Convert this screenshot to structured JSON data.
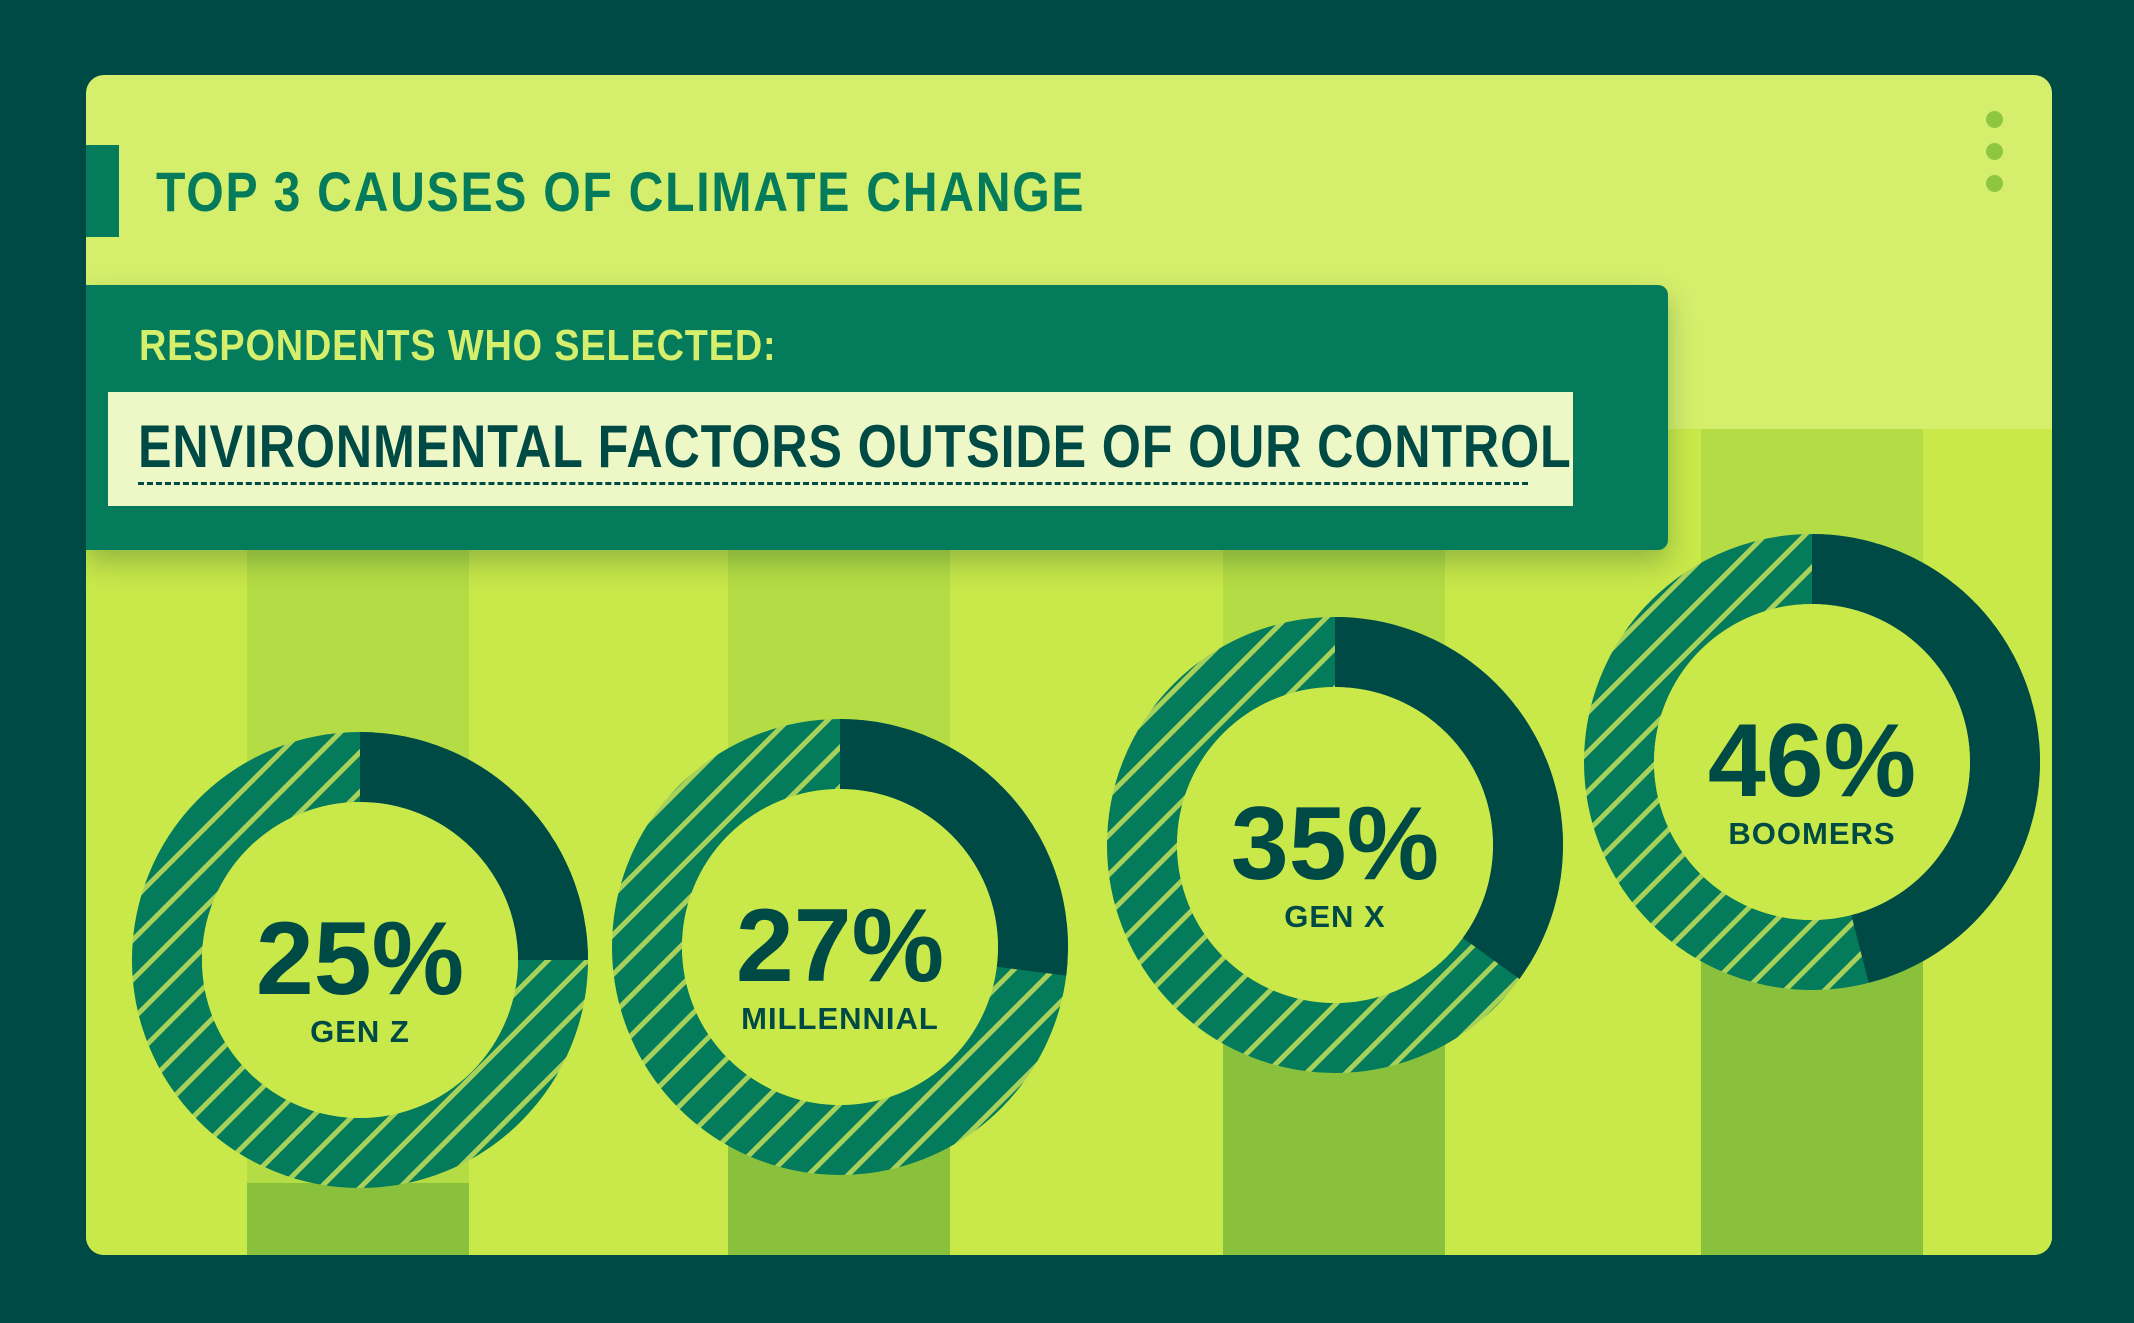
{
  "colors": {
    "frame": "#004a45",
    "card": "#d5ef6c",
    "chart_bg": "#c9e84a",
    "accent": "#047b5b",
    "dark": "#004a45",
    "hatch_stripe": "#a8d15a",
    "panel_box": "#eef7c6",
    "dot": "#8dc63f",
    "band_light": "#b4dc44",
    "band_dark": "#89c13d"
  },
  "header": {
    "title": "TOP 3 CAUSES OF CLIMATE CHANGE"
  },
  "menu_icon": "vertical-ellipsis-icon",
  "panel": {
    "label": "RESPONDENTS WHO SELECTED:",
    "selected_option": "ENVIRONMENTAL FACTORS OUTSIDE OF OUR CONTROL"
  },
  "chart_data": {
    "type": "pie",
    "title": "TOP 3 CAUSES OF CLIMATE CHANGE",
    "subtitle": "ENVIRONMENTAL FACTORS OUTSIDE OF OUR CONTROL",
    "unit": "%",
    "categories": [
      "GEN Z",
      "MILLENNIAL",
      "GEN X",
      "BOOMERS"
    ],
    "values": [
      25,
      27,
      35,
      46
    ],
    "value_labels": [
      "25%",
      "27%",
      "35%",
      "46%"
    ],
    "style": "donut",
    "max": 100
  }
}
